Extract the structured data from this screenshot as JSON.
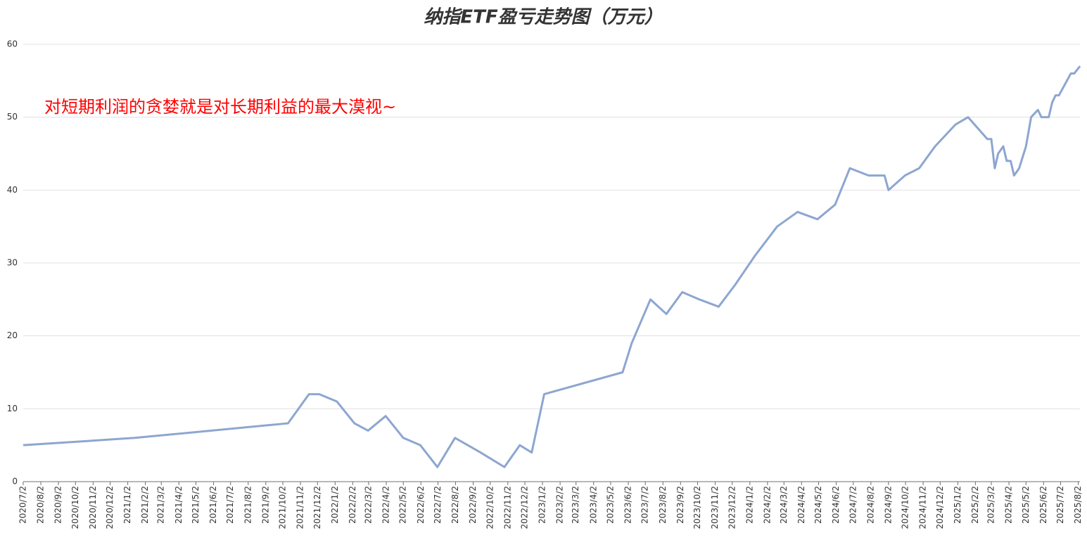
{
  "chart_data": {
    "type": "line",
    "title": "纳指ETF盈亏走势图（万元）",
    "annotation": "对短期利润的贪婪就是对长期利益的最大漠视~",
    "x": [
      "2020/7/2",
      "2021/1/14",
      "2021/10/11",
      "2021/11/17",
      "2021/12/5",
      "2022/1/5",
      "2022/2/5",
      "2022/3/1",
      "2022/4/1",
      "2022/5/2",
      "2022/6/1",
      "2022/7/1",
      "2022/8/1",
      "2022/9/15",
      "2022/10/27",
      "2022/11/23",
      "2022/12/14",
      "2023/1/5",
      "2023/5/23",
      "2023/6/8",
      "2023/7/11",
      "2023/8/8",
      "2023/9/5",
      "2023/10/5",
      "2023/11/8",
      "2023/12/7",
      "2024/1/11",
      "2024/2/19",
      "2024/3/26",
      "2024/4/30",
      "2024/5/31",
      "2024/6/26",
      "2024/7/29",
      "2024/8/26",
      "2024/9/2",
      "2024/10/1",
      "2024/10/26",
      "2024/11/23",
      "2024/12/29",
      "2025/1/20",
      "2025/2/23",
      "2025/3/2",
      "2025/3/8",
      "2025/3/14",
      "2025/3/23",
      "2025/3/29",
      "2025/4/5",
      "2025/4/11",
      "2025/4/20",
      "2025/5/2",
      "2025/5/11",
      "2025/5/23",
      "2025/5/29",
      "2025/6/11",
      "2025/6/17",
      "2025/6/23",
      "2025/6/29",
      "2025/7/20",
      "2025/7/26",
      "2025/8/5"
    ],
    "series": [
      {
        "name": "盈亏",
        "color": "#8da6d0",
        "values": [
          5,
          6,
          8,
          12,
          12,
          11,
          8,
          7,
          9,
          6,
          5,
          2,
          6,
          4,
          2,
          5,
          4,
          12,
          15,
          19,
          25,
          23,
          26,
          25,
          24,
          27,
          31,
          35,
          37,
          36,
          38,
          43,
          42,
          42,
          40,
          42,
          43,
          46,
          49,
          50,
          47,
          47,
          43,
          45,
          46,
          44,
          44,
          42,
          43,
          46,
          50,
          51,
          50,
          50,
          52,
          53,
          53,
          56,
          56,
          57
        ]
      }
    ],
    "xlim": [
      "2020/7/2",
      "2025/8/5"
    ],
    "xticks": [
      "2020/7/2",
      "2020/8/2",
      "2020/9/2",
      "2020/10/2",
      "2020/11/2",
      "2020/12/2",
      "2021/1/2",
      "2021/2/2",
      "2021/3/2",
      "2021/4/2",
      "2021/5/2",
      "2021/6/2",
      "2021/7/2",
      "2021/8/2",
      "2021/9/2",
      "2021/10/2",
      "2021/11/2",
      "2021/12/2",
      "2022/1/2",
      "2022/2/2",
      "2022/3/2",
      "2022/4/2",
      "2022/5/2",
      "2022/6/2",
      "2022/7/2",
      "2022/8/2",
      "2022/9/2",
      "2022/10/2",
      "2022/11/2",
      "2022/12/2",
      "2023/1/2",
      "2023/2/2",
      "2023/3/2",
      "2023/4/2",
      "2023/5/2",
      "2023/6/2",
      "2023/7/2",
      "2023/8/2",
      "2023/9/2",
      "2023/10/2",
      "2023/11/2",
      "2023/12/2",
      "2024/1/2",
      "2024/2/2",
      "2024/3/2",
      "2024/4/2",
      "2024/5/2",
      "2024/6/2",
      "2024/7/2",
      "2024/8/2",
      "2024/9/2",
      "2024/10/2",
      "2024/11/2",
      "2024/12/2",
      "2025/1/2",
      "2025/2/2",
      "2025/3/2",
      "2025/4/2",
      "2025/5/2",
      "2025/6/2",
      "2025/7/2",
      "2025/8/2"
    ],
    "ylim": [
      0,
      60
    ],
    "yticks": [
      0,
      10,
      20,
      30,
      40,
      50,
      60
    ],
    "grid": true
  }
}
